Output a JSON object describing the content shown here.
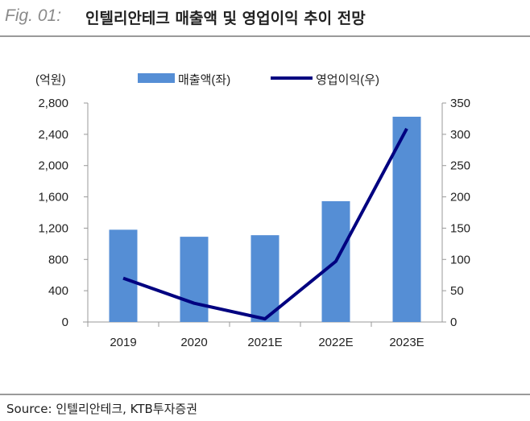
{
  "header": {
    "fig_label": "Fig. 01:",
    "title": "인텔리안테크 매출액 및 영업이익 추이 전망"
  },
  "source": "Source:  인텔리안테크, KTB투자증권",
  "chart_data": {
    "type": "bar+line",
    "title": "인텔리안테크 매출액 및 영업이익 추이 전망",
    "unit_label": "(억원)",
    "categories": [
      "2019",
      "2020",
      "2021E",
      "2022E",
      "2023E"
    ],
    "series": [
      {
        "name": "매출액(좌)",
        "type": "bar",
        "axis": "left",
        "color": "#558ed5",
        "values": [
          1180,
          1090,
          1110,
          1545,
          2625
        ]
      },
      {
        "name": "영업이익(우)",
        "type": "line",
        "axis": "right",
        "color": "#000080",
        "values": [
          70,
          30,
          5,
          97,
          309
        ]
      }
    ],
    "left_axis": {
      "range": [
        0,
        2800
      ],
      "ticks": [
        "0",
        "400",
        "800",
        "1,200",
        "1,600",
        "2,000",
        "2,400",
        "2,800"
      ]
    },
    "right_axis": {
      "range": [
        0,
        350
      ],
      "ticks": [
        "0",
        "50",
        "100",
        "150",
        "200",
        "250",
        "300",
        "350"
      ]
    },
    "legend_placement": "top",
    "grid": false
  }
}
